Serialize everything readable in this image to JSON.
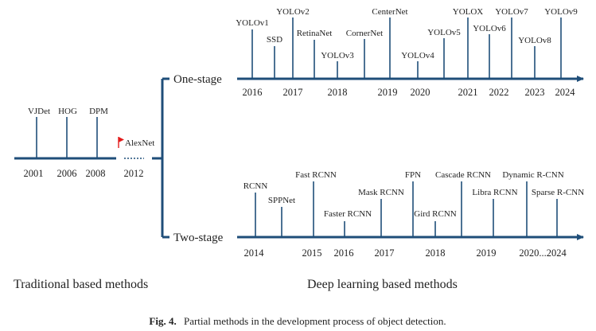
{
  "colors": {
    "axis": "#1f4e79",
    "tick": "#1f4e79",
    "text": "#222222",
    "flag": "#e31b1b"
  },
  "traditional": {
    "methods": [
      "VJDet",
      "HOG",
      "DPM"
    ],
    "years": [
      "2001",
      "2006",
      "2008"
    ],
    "alexnet_label": "AlexNet",
    "alexnet_year": "2012",
    "section_label": "Traditional based methods"
  },
  "one_stage": {
    "label": "One-stage",
    "methods": [
      "YOLOv1",
      "SSD",
      "YOLOv2",
      "RetinaNet",
      "YOLOv3",
      "CornerNet",
      "CenterNet",
      "YOLOv4",
      "YOLOv5",
      "YOLOX",
      "YOLOv6",
      "YOLOv7",
      "YOLOv8",
      "YOLOv9"
    ],
    "years": [
      "2016",
      "2017",
      "2018",
      "2019",
      "2020",
      "2021",
      "2022",
      "2023",
      "2024"
    ]
  },
  "two_stage": {
    "label": "Two-stage",
    "methods": [
      "RCNN",
      "SPPNet",
      "Fast RCNN",
      "Faster RCNN",
      "Mask RCNN",
      "FPN",
      "Gird RCNN",
      "Cascade RCNN",
      "Libra RCNN",
      "Dynamic R-CNN",
      "Sparse R-CNN"
    ],
    "years": [
      "2014",
      "2015",
      "2016",
      "2017",
      "2018",
      "2019",
      "2020...2024"
    ]
  },
  "deep_section_label": "Deep learning based methods",
  "caption": {
    "label": "Fig. 4.",
    "text": "Partial methods in the development process of object detection."
  }
}
